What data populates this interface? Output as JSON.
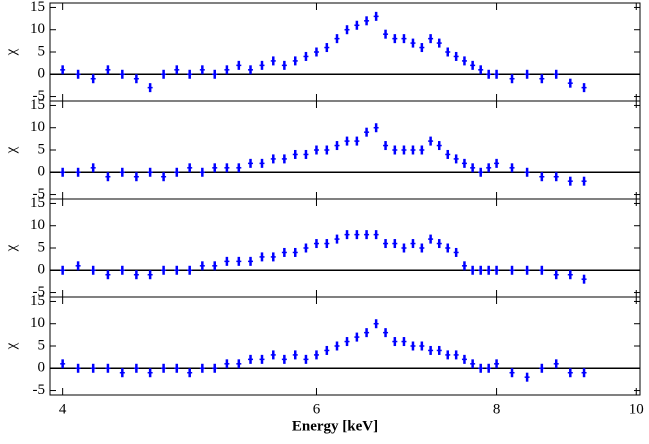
{
  "chart_data": [
    {
      "type": "scatter",
      "ylabel": "χ",
      "color": "#0000ff",
      "xscale": "log",
      "xlim": [
        3.92,
        10.06
      ],
      "ylim": [
        -6,
        16
      ],
      "yticks": [
        -5,
        0,
        5,
        10,
        15
      ],
      "xticks": [
        4,
        6,
        8,
        10
      ],
      "x": [
        4.0,
        4.1,
        4.2,
        4.3,
        4.4,
        4.5,
        4.6,
        4.7,
        4.8,
        4.9,
        5.0,
        5.1,
        5.2,
        5.3,
        5.4,
        5.5,
        5.6,
        5.7,
        5.8,
        5.9,
        6.0,
        6.1,
        6.2,
        6.3,
        6.4,
        6.5,
        6.6,
        6.7,
        6.8,
        6.9,
        7.0,
        7.1,
        7.2,
        7.3,
        7.4,
        7.5,
        7.6,
        7.7,
        7.8,
        7.9,
        8.0,
        8.2,
        8.4,
        8.6,
        8.8,
        9.0,
        9.2
      ],
      "values": [
        1,
        0,
        -1,
        1,
        0,
        -1,
        -3,
        0,
        1,
        0,
        1,
        0,
        1,
        2,
        1,
        2,
        3,
        2,
        3,
        4,
        5,
        6,
        8,
        10,
        11,
        12,
        13,
        9,
        8,
        8,
        7,
        6,
        8,
        7,
        5,
        4,
        3,
        2,
        1,
        0,
        0,
        -1,
        0,
        -1,
        0,
        -2,
        -3
      ]
    },
    {
      "type": "scatter",
      "ylabel": "χ",
      "color": "#0000ff",
      "xscale": "log",
      "xlim": [
        3.92,
        10.06
      ],
      "ylim": [
        -6,
        16
      ],
      "yticks": [
        -5,
        0,
        5,
        10,
        15
      ],
      "xticks": [
        4,
        6,
        8,
        10
      ],
      "x": [
        4.0,
        4.1,
        4.2,
        4.3,
        4.4,
        4.5,
        4.6,
        4.7,
        4.8,
        4.9,
        5.0,
        5.1,
        5.2,
        5.3,
        5.4,
        5.5,
        5.6,
        5.7,
        5.8,
        5.9,
        6.0,
        6.1,
        6.2,
        6.3,
        6.4,
        6.5,
        6.6,
        6.7,
        6.8,
        6.9,
        7.0,
        7.1,
        7.2,
        7.3,
        7.4,
        7.5,
        7.6,
        7.7,
        7.8,
        7.9,
        8.0,
        8.2,
        8.4,
        8.6,
        8.8,
        9.0,
        9.2
      ],
      "values": [
        0,
        0,
        1,
        -1,
        0,
        -1,
        0,
        -1,
        0,
        1,
        0,
        1,
        1,
        1,
        2,
        2,
        3,
        3,
        4,
        4,
        5,
        5,
        6,
        7,
        7,
        9,
        10,
        6,
        5,
        5,
        5,
        5,
        7,
        6,
        4,
        3,
        2,
        1,
        0,
        1,
        2,
        1,
        0,
        -1,
        -1,
        -2,
        -2
      ]
    },
    {
      "type": "scatter",
      "ylabel": "χ",
      "color": "#0000ff",
      "xscale": "log",
      "xlim": [
        3.92,
        10.06
      ],
      "ylim": [
        -6,
        16
      ],
      "yticks": [
        -5,
        0,
        5,
        10,
        15
      ],
      "xticks": [
        4,
        6,
        8,
        10
      ],
      "x": [
        4.0,
        4.1,
        4.2,
        4.3,
        4.4,
        4.5,
        4.6,
        4.7,
        4.8,
        4.9,
        5.0,
        5.1,
        5.2,
        5.3,
        5.4,
        5.5,
        5.6,
        5.7,
        5.8,
        5.9,
        6.0,
        6.1,
        6.2,
        6.3,
        6.4,
        6.5,
        6.6,
        6.7,
        6.8,
        6.9,
        7.0,
        7.1,
        7.2,
        7.3,
        7.4,
        7.5,
        7.6,
        7.7,
        7.8,
        7.9,
        8.0,
        8.2,
        8.4,
        8.6,
        8.8,
        9.0,
        9.2
      ],
      "values": [
        0,
        1,
        0,
        -1,
        0,
        -1,
        -1,
        0,
        0,
        0,
        1,
        1,
        2,
        2,
        2,
        3,
        3,
        4,
        4,
        5,
        6,
        6,
        7,
        8,
        8,
        8,
        8,
        6,
        6,
        5,
        6,
        5,
        7,
        6,
        5,
        4,
        1,
        0,
        0,
        0,
        0,
        0,
        0,
        0,
        -1,
        -1,
        -2
      ]
    },
    {
      "type": "scatter",
      "ylabel": "χ",
      "xlabel": "Energy [keV]",
      "color": "#0000ff",
      "xscale": "log",
      "xlim": [
        3.92,
        10.06
      ],
      "ylim": [
        -6,
        16
      ],
      "yticks": [
        -5,
        0,
        5,
        10,
        15
      ],
      "xticks": [
        4,
        6,
        8,
        10
      ],
      "x": [
        4.0,
        4.1,
        4.2,
        4.3,
        4.4,
        4.5,
        4.6,
        4.7,
        4.8,
        4.9,
        5.0,
        5.1,
        5.2,
        5.3,
        5.4,
        5.5,
        5.6,
        5.7,
        5.8,
        5.9,
        6.0,
        6.1,
        6.2,
        6.3,
        6.4,
        6.5,
        6.6,
        6.7,
        6.8,
        6.9,
        7.0,
        7.1,
        7.2,
        7.3,
        7.4,
        7.5,
        7.6,
        7.7,
        7.8,
        7.9,
        8.0,
        8.2,
        8.4,
        8.6,
        8.8,
        9.0,
        9.2
      ],
      "values": [
        1,
        0,
        0,
        0,
        -1,
        0,
        -1,
        0,
        0,
        -1,
        0,
        0,
        1,
        1,
        2,
        2,
        3,
        2,
        3,
        2,
        3,
        4,
        5,
        6,
        7,
        8,
        10,
        8,
        6,
        6,
        5,
        5,
        4,
        4,
        3,
        3,
        2,
        1,
        0,
        0,
        1,
        -1,
        -2,
        0,
        1,
        -1,
        -1
      ]
    }
  ]
}
